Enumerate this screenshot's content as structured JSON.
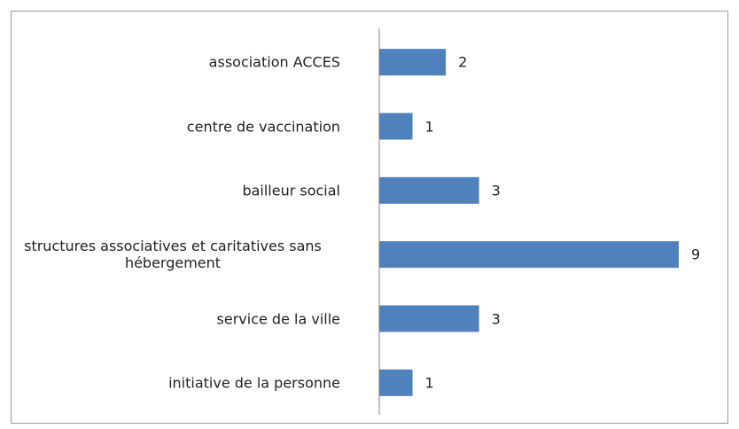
{
  "chart_data": {
    "type": "bar",
    "orientation": "horizontal",
    "categories": [
      "association ACCES",
      "centre de vaccination",
      "bailleur social",
      "structures associatives et caritatives sans hébergement",
      "service de la ville",
      "initiative de la personne"
    ],
    "values": [
      2,
      1,
      3,
      9,
      3,
      1
    ],
    "color": "#4f81bd"
  }
}
